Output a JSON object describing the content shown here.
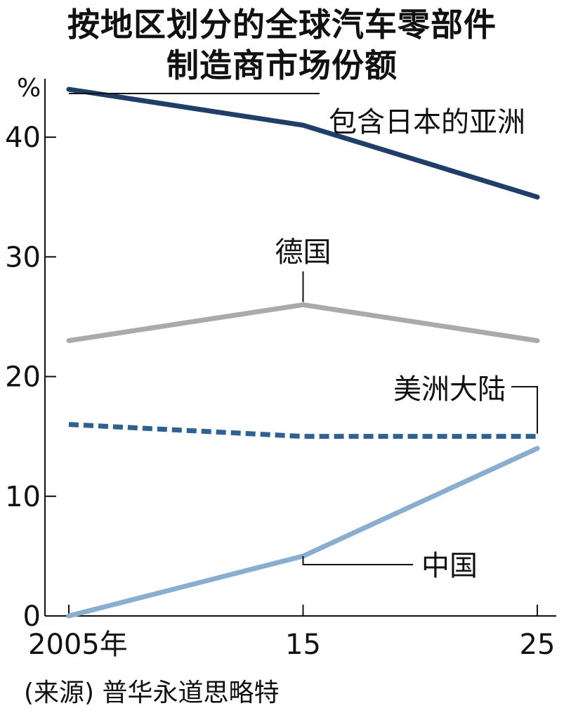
{
  "chart_data": {
    "type": "line",
    "title_lines": [
      "按地区划分的全球汽车零部件",
      "制造商市场份额"
    ],
    "ylabel": "%",
    "ylim": [
      0,
      45
    ],
    "yticks": [
      0,
      10,
      20,
      30,
      40
    ],
    "x": [
      2005,
      2015,
      2025
    ],
    "xtick_labels": [
      "2005年",
      "15",
      "25"
    ],
    "grid": false,
    "series": [
      {
        "name": "包含日本的亚洲",
        "values": [
          44,
          41,
          35
        ],
        "color": "#1f3f68",
        "style": "solid"
      },
      {
        "name": "德国",
        "values": [
          23,
          26,
          23
        ],
        "color": "#aaaaaa",
        "style": "solid"
      },
      {
        "name": "美洲大陆",
        "values": [
          16,
          15,
          15
        ],
        "color": "#2f6192",
        "style": "dashed"
      },
      {
        "name": "中国",
        "values": [
          0,
          5,
          14
        ],
        "color": "#8aaed0",
        "style": "solid"
      }
    ],
    "source": "(来源) 普华永道思略特"
  }
}
